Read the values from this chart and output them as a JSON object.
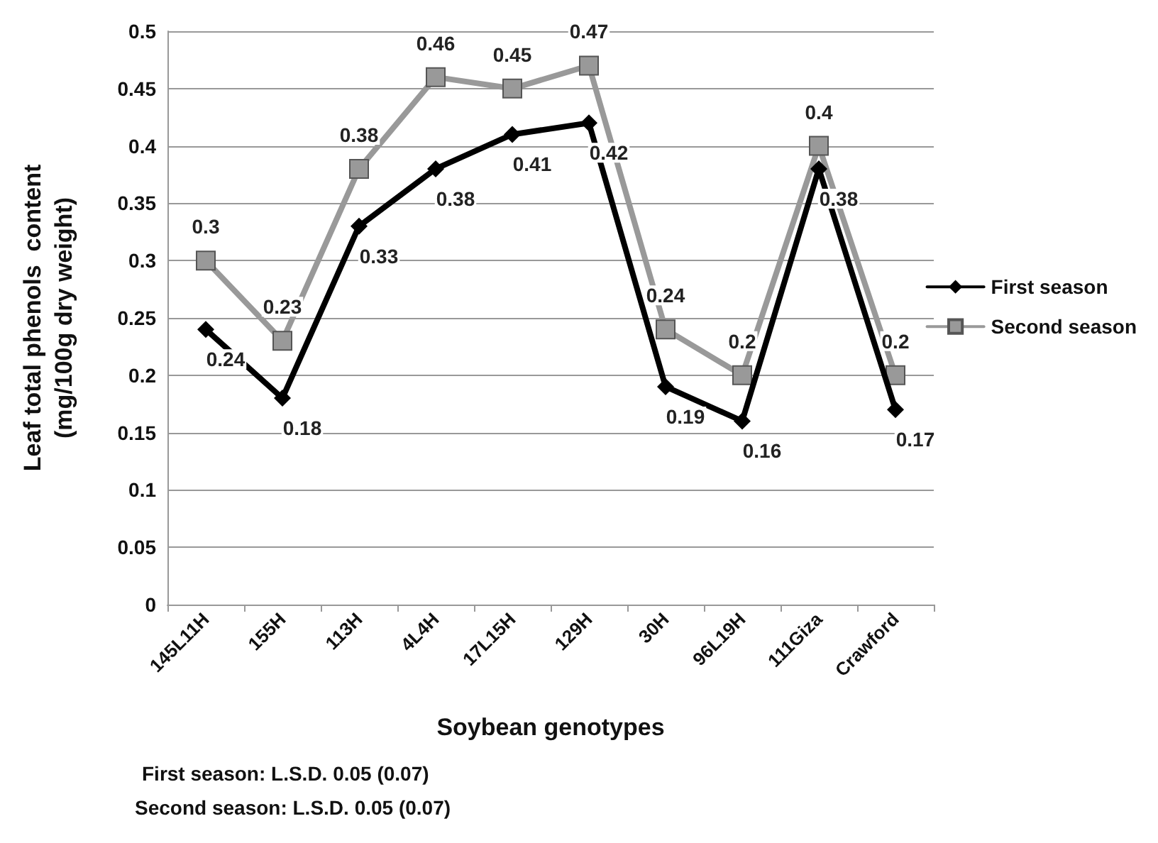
{
  "chart_data": {
    "type": "line",
    "xlabel": "Soybean genotypes",
    "ylabel": "Leaf total phenols  content\n(mg/100g dry weight)",
    "categories": [
      "145L11H",
      "155H",
      "113H",
      "4L4H",
      "17L15H",
      "129H",
      "30H",
      "96L19H",
      "111Giza",
      "Crawford"
    ],
    "series": [
      {
        "name": "First season",
        "color": "#000000",
        "marker": "diamond",
        "values": [
          0.24,
          0.18,
          0.33,
          0.38,
          0.41,
          0.42,
          0.19,
          0.16,
          0.38,
          0.17
        ]
      },
      {
        "name": "Second season",
        "color": "#999999",
        "marker": "square",
        "values": [
          0.3,
          0.23,
          0.38,
          0.46,
          0.45,
          0.47,
          0.24,
          0.2,
          0.4,
          0.2
        ]
      }
    ],
    "ylim": [
      0,
      0.5
    ],
    "yticks": [
      0,
      0.05,
      0.1,
      0.15,
      0.2,
      0.25,
      0.3,
      0.35,
      0.4,
      0.45,
      0.5
    ],
    "grid": "y",
    "legend": "right",
    "data_labels": true,
    "line_style": "solid",
    "annotations": [
      "First season: L.S.D. 0.05 (0.07)",
      "Second season: L.S.D. 0.05 (0.07)"
    ]
  }
}
